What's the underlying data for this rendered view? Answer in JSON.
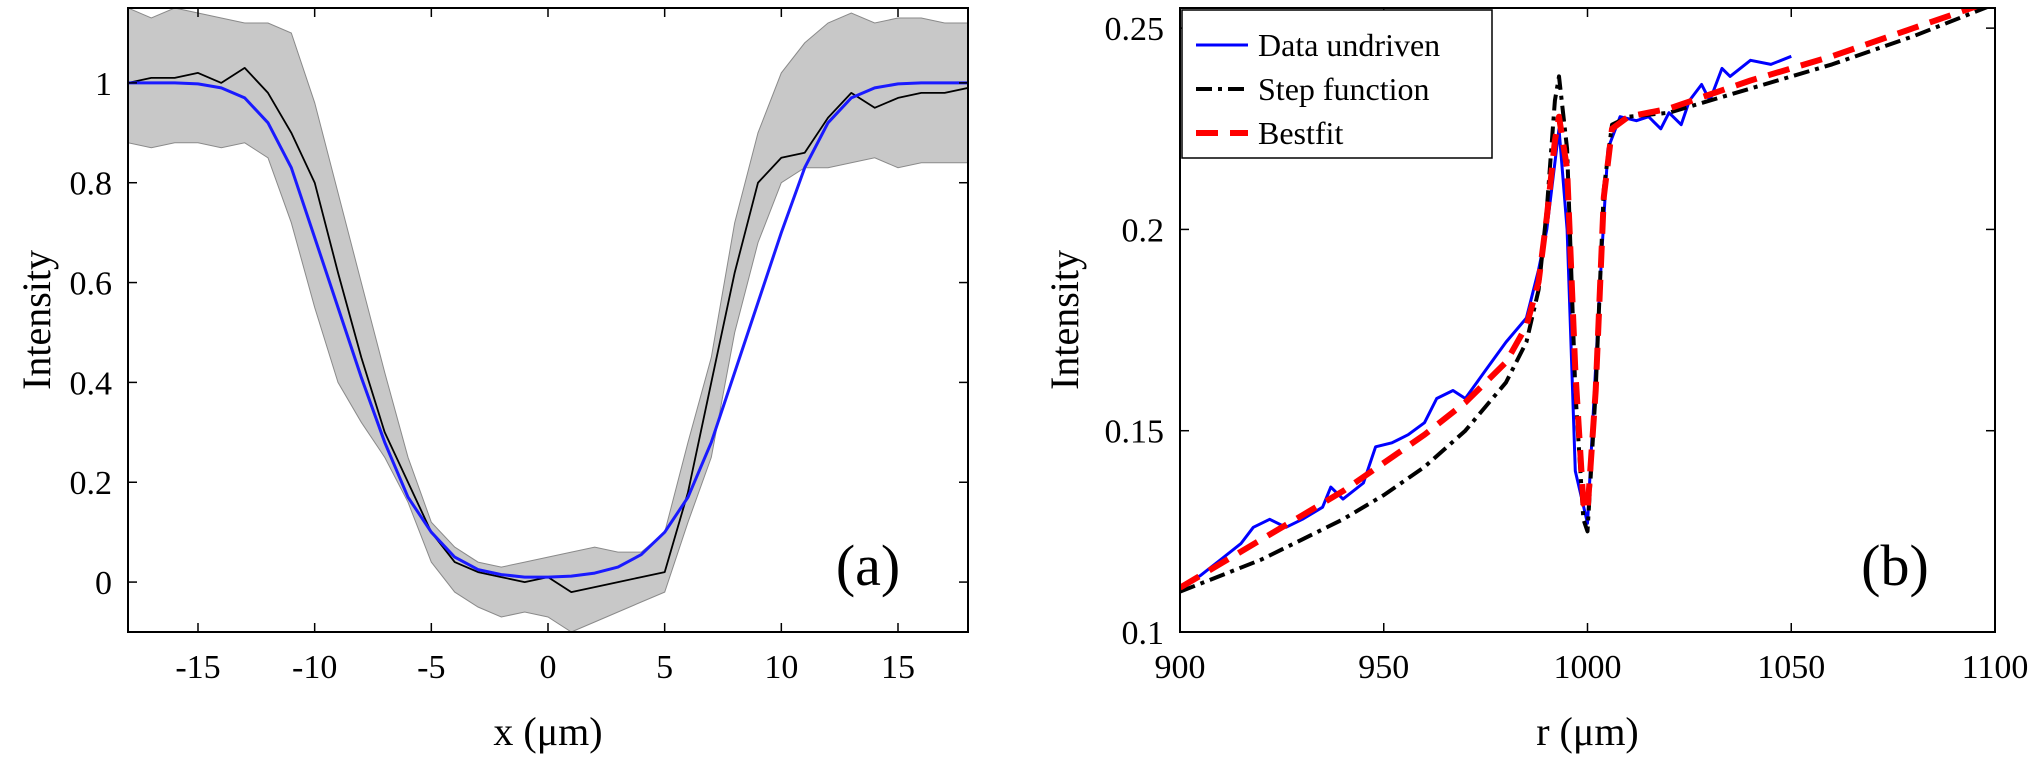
{
  "chart_data": [
    {
      "type": "line",
      "panel_label": "(a)",
      "xlabel": "x (μm)",
      "ylabel": "Intensity",
      "xlim": [
        -18,
        18
      ],
      "ylim": [
        -0.1,
        1.15
      ],
      "xticks": [
        -15,
        -10,
        -5,
        0,
        5,
        10,
        15
      ],
      "xtick_labels": [
        "-15",
        "-10",
        "-5",
        "0",
        "5",
        "10",
        "15"
      ],
      "yticks": [
        0,
        0.2,
        0.4,
        0.6,
        0.8,
        1
      ],
      "ytick_labels": [
        "0",
        "0.2",
        "0.4",
        "0.6",
        "0.8",
        "1"
      ],
      "grid": false,
      "colors": {
        "band": "#c8c8c8",
        "mean": "#000000",
        "fit": "#1a1aff"
      },
      "series": [
        {
          "name": "band",
          "kind": "area",
          "x": [
            -18,
            -17,
            -16,
            -15,
            -14,
            -13,
            -12,
            -11,
            -10,
            -9,
            -8,
            -7,
            -6,
            -5,
            -4,
            -3,
            -2,
            -1,
            0,
            1,
            2,
            3,
            4,
            5,
            6,
            7,
            8,
            9,
            10,
            11,
            12,
            13,
            14,
            15,
            16,
            17,
            18
          ],
          "upper": [
            1.15,
            1.13,
            1.15,
            1.14,
            1.13,
            1.12,
            1.12,
            1.1,
            0.96,
            0.78,
            0.6,
            0.42,
            0.25,
            0.12,
            0.07,
            0.04,
            0.03,
            0.04,
            0.05,
            0.06,
            0.07,
            0.06,
            0.06,
            0.1,
            0.28,
            0.45,
            0.72,
            0.9,
            1.02,
            1.08,
            1.12,
            1.14,
            1.12,
            1.13,
            1.13,
            1.12,
            1.12
          ],
          "lower": [
            0.88,
            0.87,
            0.88,
            0.88,
            0.87,
            0.88,
            0.85,
            0.72,
            0.55,
            0.4,
            0.32,
            0.25,
            0.16,
            0.04,
            -0.02,
            -0.05,
            -0.07,
            -0.06,
            -0.07,
            -0.1,
            -0.08,
            -0.06,
            -0.04,
            -0.02,
            0.12,
            0.25,
            0.5,
            0.68,
            0.8,
            0.83,
            0.83,
            0.84,
            0.85,
            0.83,
            0.84,
            0.84,
            0.84
          ]
        },
        {
          "name": "mean",
          "kind": "line",
          "x": [
            -18,
            -17,
            -16,
            -15,
            -14,
            -13,
            -12,
            -11,
            -10,
            -9,
            -8,
            -7,
            -6,
            -5,
            -4,
            -3,
            -2,
            -1,
            0,
            1,
            2,
            3,
            4,
            5,
            6,
            7,
            8,
            9,
            10,
            11,
            12,
            13,
            14,
            15,
            16,
            17,
            18
          ],
          "y": [
            1.0,
            1.01,
            1.01,
            1.02,
            1.0,
            1.03,
            0.98,
            0.9,
            0.8,
            0.62,
            0.45,
            0.3,
            0.2,
            0.1,
            0.04,
            0.02,
            0.01,
            0.0,
            0.01,
            -0.02,
            -0.01,
            0.0,
            0.01,
            0.02,
            0.18,
            0.4,
            0.62,
            0.8,
            0.85,
            0.86,
            0.93,
            0.98,
            0.95,
            0.97,
            0.98,
            0.98,
            0.99
          ]
        },
        {
          "name": "fit",
          "kind": "line",
          "x": [
            -18,
            -17,
            -16,
            -15,
            -14,
            -13,
            -12,
            -11,
            -10,
            -9,
            -8,
            -7,
            -6,
            -5,
            -4,
            -3,
            -2,
            -1,
            0,
            1,
            2,
            3,
            4,
            5,
            6,
            7,
            8,
            9,
            10,
            11,
            12,
            13,
            14,
            15,
            16,
            17,
            18
          ],
          "y": [
            1.0,
            1.0,
            1.0,
            0.998,
            0.99,
            0.97,
            0.92,
            0.83,
            0.69,
            0.55,
            0.41,
            0.28,
            0.17,
            0.1,
            0.05,
            0.025,
            0.015,
            0.01,
            0.01,
            0.012,
            0.018,
            0.03,
            0.055,
            0.1,
            0.17,
            0.28,
            0.42,
            0.56,
            0.7,
            0.83,
            0.92,
            0.97,
            0.99,
            0.998,
            1.0,
            1.0,
            1.0
          ]
        }
      ]
    },
    {
      "type": "line",
      "panel_label": "(b)",
      "xlabel": "r (μm)",
      "ylabel": "Intensity",
      "xlim": [
        900,
        1100
      ],
      "ylim": [
        0.1,
        0.255
      ],
      "xticks": [
        900,
        950,
        1000,
        1050,
        1100
      ],
      "xtick_labels": [
        "900",
        "950",
        "1000",
        "1050",
        "1100"
      ],
      "yticks": [
        0.1,
        0.15,
        0.2,
        0.25
      ],
      "ytick_labels": [
        "0.1",
        "0.15",
        "0.2",
        "0.25"
      ],
      "grid": false,
      "legend_position": "top-left",
      "series": [
        {
          "name": "Data undriven",
          "style": "solid",
          "color": "#0000ff",
          "x": [
            900,
            905,
            910,
            915,
            918,
            922,
            926,
            930,
            935,
            937,
            940,
            945,
            948,
            952,
            956,
            960,
            963,
            967,
            970,
            975,
            980,
            985,
            988,
            990,
            993,
            995,
            997,
            1000,
            1003,
            1005,
            1008,
            1012,
            1015,
            1018,
            1020,
            1023,
            1025,
            1028,
            1030,
            1033,
            1035,
            1040,
            1045,
            1050
          ],
          "y": [
            0.111,
            0.114,
            0.118,
            0.122,
            0.126,
            0.128,
            0.126,
            0.128,
            0.131,
            0.136,
            0.133,
            0.137,
            0.146,
            0.147,
            0.149,
            0.152,
            0.158,
            0.16,
            0.158,
            0.165,
            0.172,
            0.178,
            0.19,
            0.2,
            0.225,
            0.2,
            0.14,
            0.127,
            0.185,
            0.22,
            0.228,
            0.227,
            0.228,
            0.225,
            0.229,
            0.226,
            0.232,
            0.236,
            0.232,
            0.24,
            0.238,
            0.242,
            0.241,
            0.243
          ]
        },
        {
          "name": "Step function",
          "style": "dashdot",
          "color": "#000000",
          "x": [
            900,
            910,
            920,
            930,
            940,
            950,
            960,
            970,
            980,
            985,
            988,
            990,
            992,
            993,
            995,
            997,
            999,
            1000,
            1002,
            1004,
            1006,
            1010,
            1020,
            1040,
            1060,
            1080,
            1100
          ],
          "y": [
            0.11,
            0.114,
            0.118,
            0.123,
            0.128,
            0.134,
            0.141,
            0.15,
            0.162,
            0.172,
            0.185,
            0.205,
            0.232,
            0.238,
            0.22,
            0.16,
            0.128,
            0.125,
            0.16,
            0.21,
            0.226,
            0.228,
            0.229,
            0.235,
            0.241,
            0.248,
            0.256
          ]
        },
        {
          "name": "Bestfit",
          "style": "dashed",
          "color": "#ff0000",
          "x": [
            900,
            910,
            920,
            930,
            940,
            950,
            960,
            970,
            980,
            985,
            988,
            990,
            992,
            993,
            995,
            997,
            999,
            1000,
            1002,
            1004,
            1006,
            1010,
            1020,
            1040,
            1060,
            1080,
            1100
          ],
          "y": [
            0.111,
            0.117,
            0.123,
            0.129,
            0.135,
            0.142,
            0.149,
            0.157,
            0.167,
            0.176,
            0.187,
            0.203,
            0.222,
            0.228,
            0.215,
            0.165,
            0.132,
            0.13,
            0.16,
            0.208,
            0.225,
            0.228,
            0.23,
            0.237,
            0.243,
            0.25,
            0.257
          ]
        }
      ]
    }
  ]
}
